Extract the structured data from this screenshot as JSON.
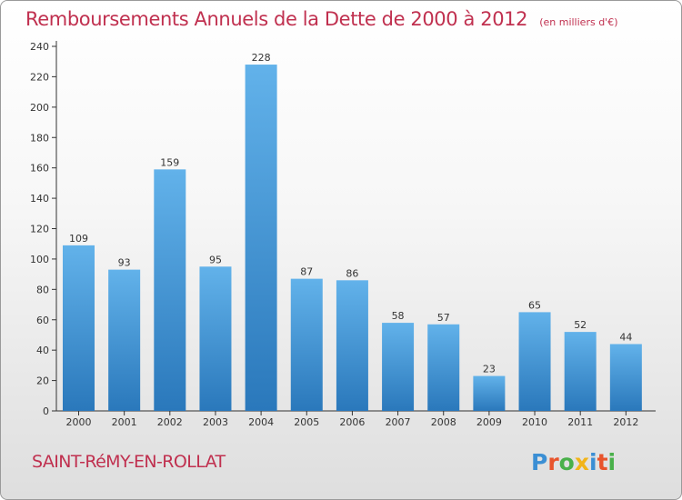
{
  "header": {
    "title": "Remboursements Annuels de la Dette de 2000 à 2012",
    "unit": "(en milliers d'€)"
  },
  "footer": {
    "city": "SAINT-RéMY-EN-ROLLAT",
    "logo_text": "Proxiti"
  },
  "colors": {
    "title": "#c0304f",
    "bar_top": "#62b2ea",
    "bar_bottom": "#2a78bb"
  },
  "chart_data": {
    "type": "bar",
    "categories": [
      "2000",
      "2001",
      "2002",
      "2003",
      "2004",
      "2005",
      "2006",
      "2007",
      "2008",
      "2009",
      "2010",
      "2011",
      "2012"
    ],
    "values": [
      109,
      93,
      159,
      95,
      228,
      87,
      86,
      58,
      57,
      23,
      65,
      52,
      44
    ],
    "ylim": [
      0,
      240
    ],
    "yticks": [
      0,
      20,
      40,
      60,
      80,
      100,
      120,
      140,
      160,
      180,
      200,
      220,
      240
    ],
    "grid": false,
    "legend": "none"
  }
}
